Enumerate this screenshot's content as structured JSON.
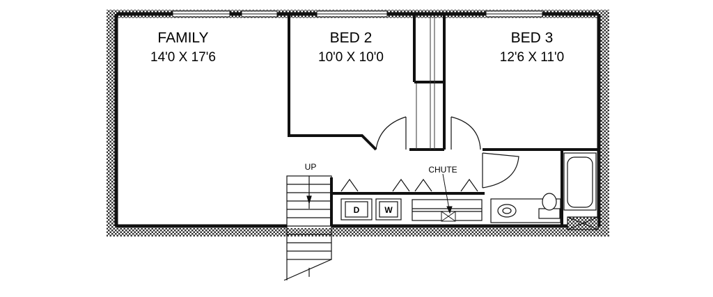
{
  "rooms": {
    "family": {
      "name": "FAMILY",
      "dims": "14'0 X 17'6"
    },
    "bed2": {
      "name": "BED 2",
      "dims": "10'0 X 10'0"
    },
    "bed3": {
      "name": "BED 3",
      "dims": "12'6 X 11'0"
    }
  },
  "labels": {
    "stairs": "UP",
    "chute": "CHUTE",
    "dryer": "D",
    "washer": "W"
  },
  "colors": {
    "wall": "#111111",
    "background": "#ffffff",
    "foundation_hatch": "#444444"
  }
}
